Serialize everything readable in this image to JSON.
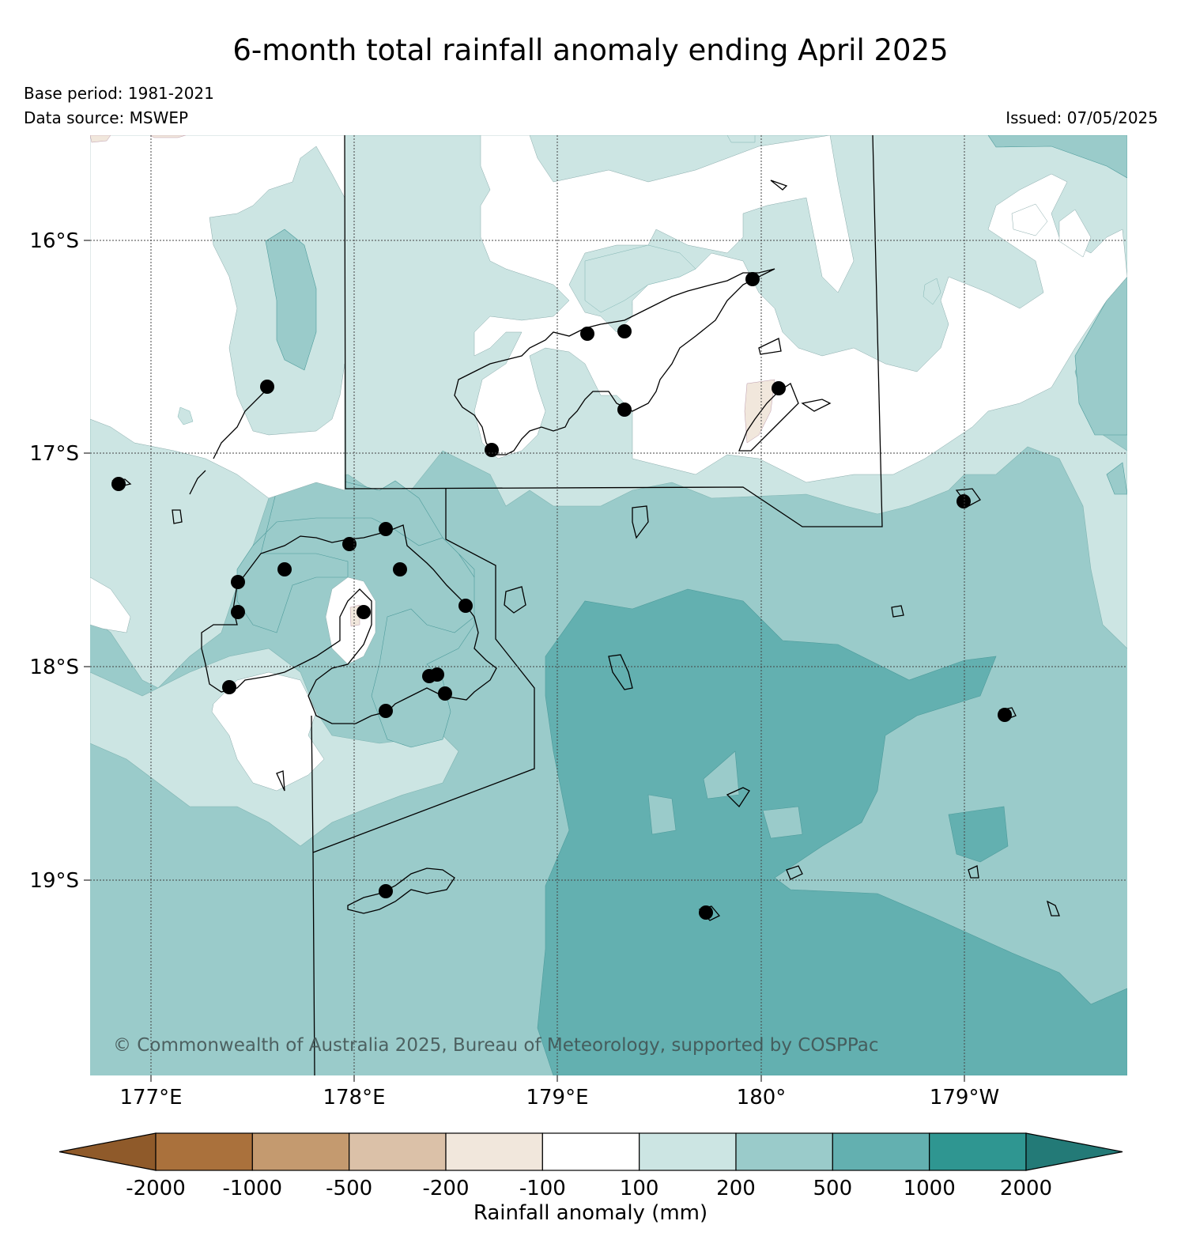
{
  "title": "6-month total rainfall anomaly ending April 2025",
  "base_period": "Base period: 1981-2021",
  "data_source": "Data source: MSWEP",
  "issued": "Issued: 07/05/2025",
  "copyright": "© Commonwealth of Australia 2025, Bureau of Meteorology, supported by COSPPac",
  "map": {
    "latitudes": [
      "16°S",
      "17°S",
      "18°S",
      "19°S"
    ],
    "longitudes": [
      "177°E",
      "178°E",
      "179°E",
      "180°",
      "179°W"
    ]
  },
  "legend": {
    "title": "Rainfall anomaly (mm)",
    "ticks": [
      "-2000",
      "-1000",
      "-500",
      "-200",
      "-100",
      "100",
      "200",
      "500",
      "1000",
      "2000"
    ],
    "colors": [
      "#8f5a2a",
      "#aa713c",
      "#c49a6f",
      "#dbc1a8",
      "#f1e7dc",
      "#ffffff",
      "#cce5e3",
      "#9acbca",
      "#63b0b0",
      "#2f9691",
      "#237a77"
    ]
  },
  "palette": {
    "white": "#ffffff",
    "light": "#cce5e3",
    "mid": "#9acbca",
    "dark": "#63b0b0",
    "tan": "#f1e7dc"
  }
}
